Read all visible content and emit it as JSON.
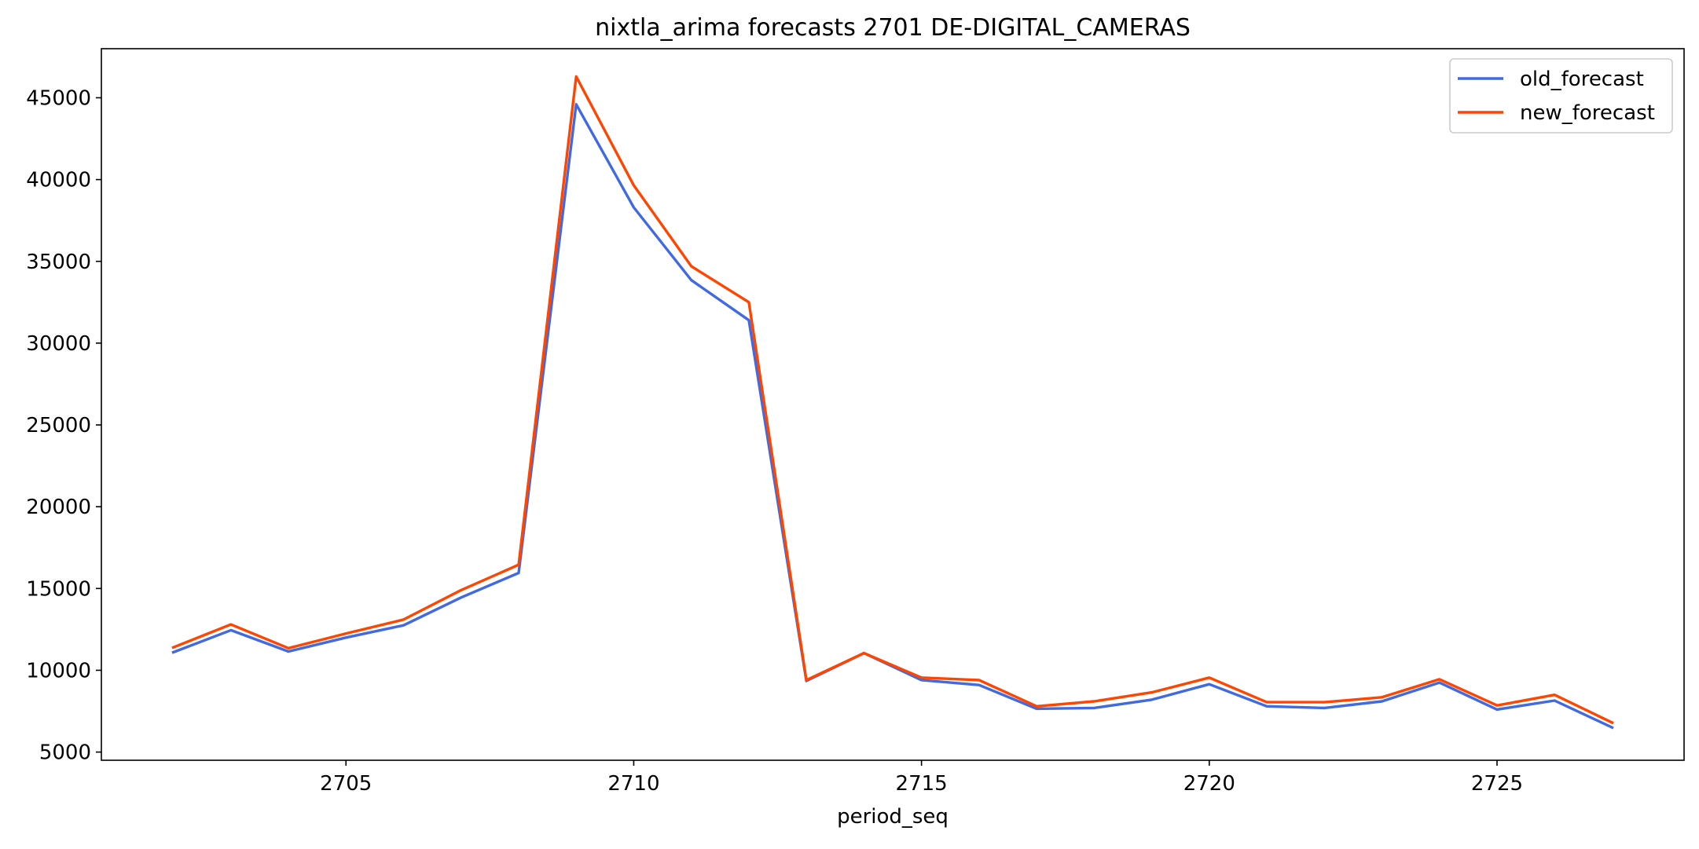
{
  "chart_data": {
    "type": "line",
    "title": "nixtla_arima forecasts 2701 DE-DIGITAL_CAMERAS",
    "xlabel": "period_seq",
    "ylabel": "",
    "x": [
      2702,
      2703,
      2704,
      2705,
      2706,
      2707,
      2708,
      2709,
      2710,
      2711,
      2712,
      2713,
      2714,
      2715,
      2716,
      2717,
      2718,
      2719,
      2720,
      2721,
      2722,
      2723,
      2724,
      2725,
      2726,
      2727
    ],
    "series": [
      {
        "name": "old_forecast",
        "color": "#4169e1",
        "values": [
          11100,
          12450,
          11150,
          12000,
          12750,
          14450,
          15950,
          44600,
          38300,
          33850,
          31400,
          9350,
          11050,
          9400,
          9100,
          7650,
          7700,
          8200,
          9150,
          7800,
          7700,
          8100,
          9250,
          7600,
          8150,
          6500
        ]
      },
      {
        "name": "new_forecast",
        "color": "#ff4500",
        "values": [
          11400,
          12800,
          11350,
          12250,
          13100,
          14900,
          16450,
          46300,
          39650,
          34700,
          32500,
          9400,
          11050,
          9550,
          9400,
          7800,
          8100,
          8650,
          9550,
          8050,
          8050,
          8350,
          9450,
          7850,
          8500,
          6800
        ]
      }
    ],
    "xticks": [
      2705,
      2710,
      2715,
      2720,
      2725
    ],
    "yticks": [
      5000,
      10000,
      15000,
      20000,
      25000,
      30000,
      35000,
      40000,
      45000
    ],
    "xlim": [
      2700.75,
      2728.25
    ],
    "ylim": [
      4500,
      48000
    ],
    "grid": false,
    "legend_position": "top-right"
  }
}
